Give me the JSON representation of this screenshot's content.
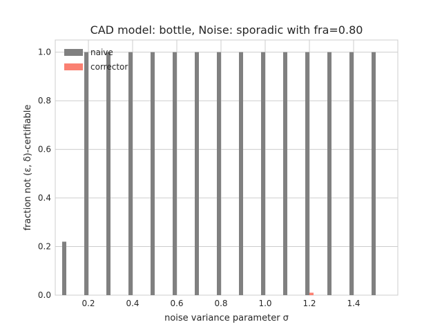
{
  "chart_data": {
    "type": "bar",
    "title": "CAD model: bottle, Noise: sporadic with fra=0.80",
    "xlabel": "noise variance parameter σ",
    "ylabel": "fraction not (ε, δ)-certifiable",
    "x": [
      0.1,
      0.2,
      0.3,
      0.4,
      0.5,
      0.6,
      0.7,
      0.8,
      0.9,
      1.0,
      1.1,
      1.2,
      1.3,
      1.4,
      1.5
    ],
    "series": [
      {
        "name": "naive",
        "color": "#808080",
        "values": [
          0.22,
          1.0,
          1.0,
          1.0,
          1.0,
          1.0,
          1.0,
          1.0,
          1.0,
          1.0,
          1.0,
          1.0,
          1.0,
          1.0,
          1.0
        ]
      },
      {
        "name": "corrector",
        "color": "#fa8072",
        "values": [
          0,
          0,
          0,
          0,
          0,
          0,
          0,
          0,
          0,
          0,
          0,
          0.01,
          0,
          0,
          0
        ]
      }
    ],
    "xticks": [
      "0.2",
      "0.4",
      "0.6",
      "0.8",
      "1.0",
      "1.2",
      "1.4"
    ],
    "yticks": [
      "0.0",
      "0.2",
      "0.4",
      "0.6",
      "0.8",
      "1.0"
    ],
    "xlim": [
      0.05,
      1.6
    ],
    "ylim": [
      0,
      1.05
    ],
    "grid": true,
    "legend_position": "top-left"
  }
}
